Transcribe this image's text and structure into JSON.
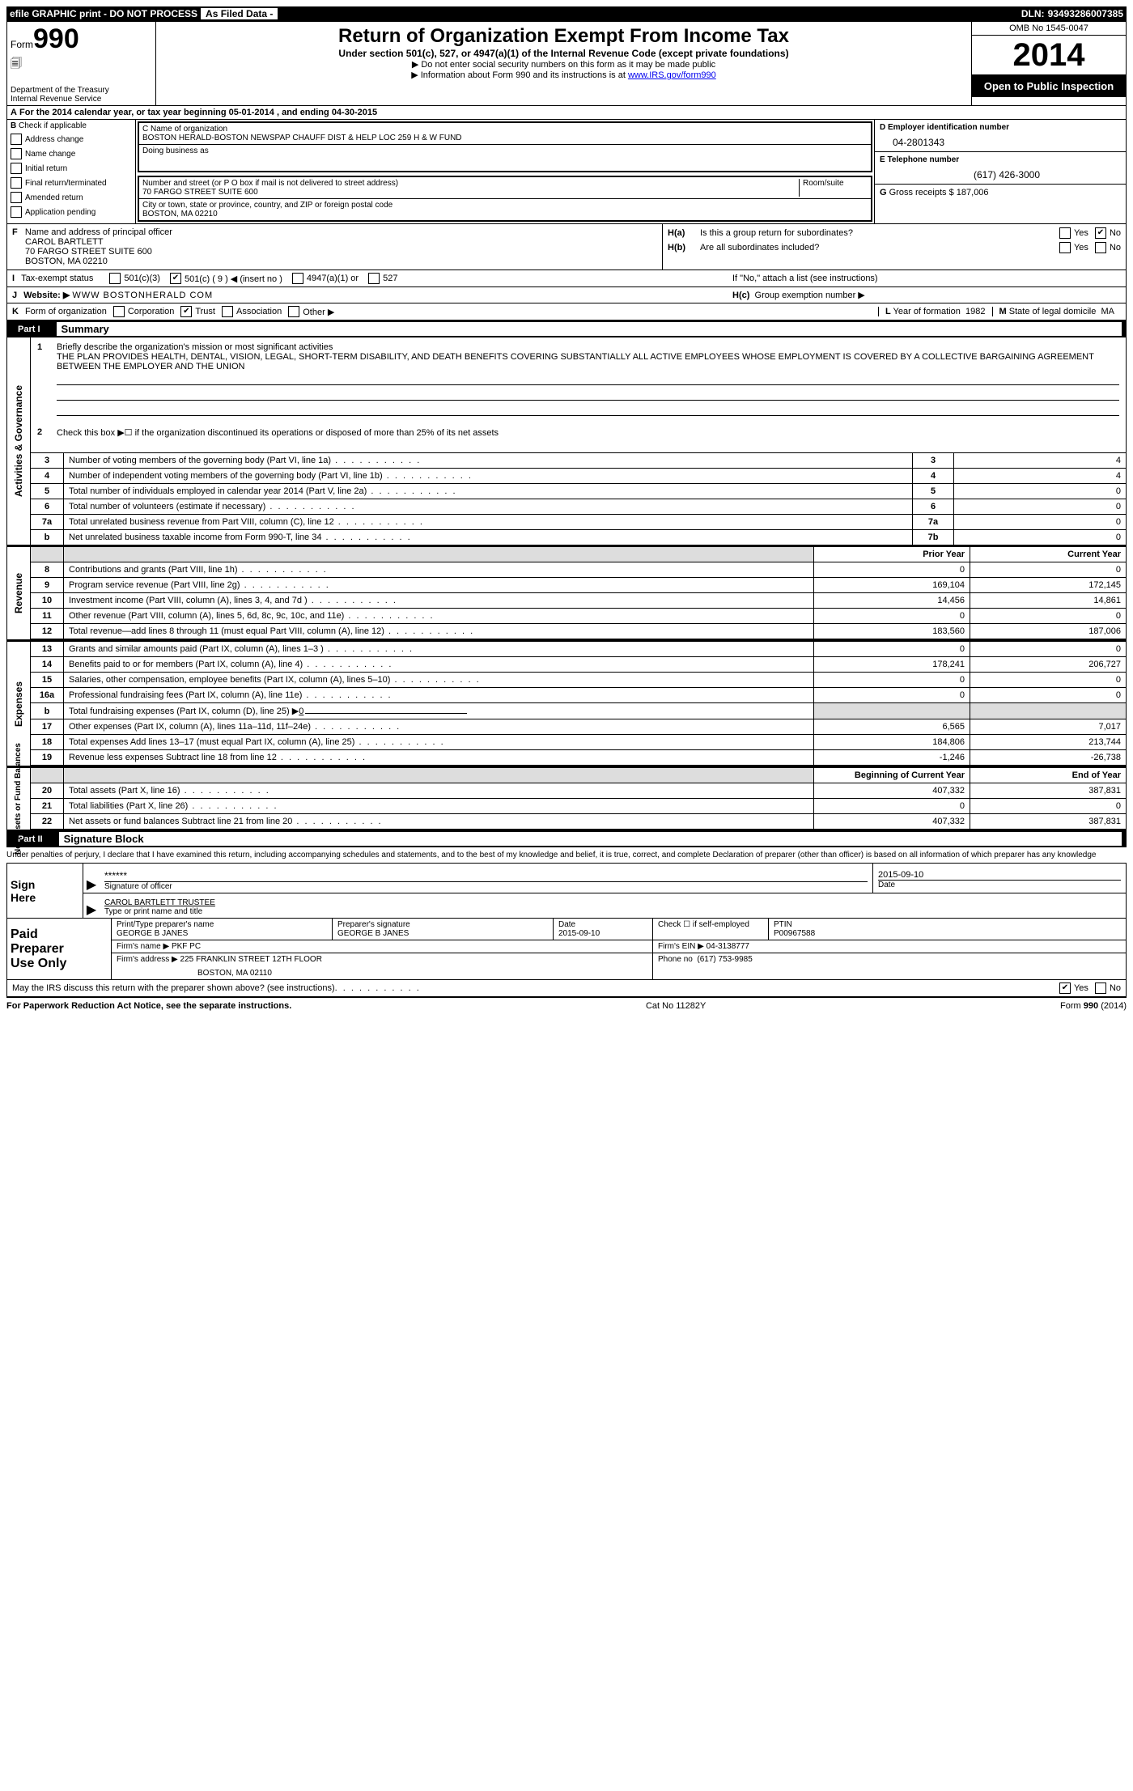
{
  "header_bar": {
    "efile": "efile GRAPHIC print - DO NOT PROCESS",
    "as_filed": "As Filed Data -",
    "dln_label": "DLN:",
    "dln": "93493286007385"
  },
  "form_id": {
    "prefix": "Form",
    "number": "990",
    "dept1": "Department of the Treasury",
    "dept2": "Internal Revenue Service"
  },
  "title_block": {
    "title": "Return of Organization Exempt From Income Tax",
    "sub": "Under section 501(c), 527, or 4947(a)(1) of the Internal Revenue Code (except private foundations)",
    "note1": "▶ Do not enter social security numbers on this form as it may be made public",
    "note2_pre": "▶ Information about Form 990 and its instructions is at ",
    "note2_link": "www.IRS.gov/form990"
  },
  "right_block": {
    "omb": "OMB No 1545-0047",
    "year": "2014",
    "open": "Open to Public Inspection"
  },
  "row_a": {
    "prefix": "A",
    "text1": "For the 2014 calendar year, or tax year beginning ",
    "begin": "05-01-2014",
    "text2": " , and ending ",
    "end": "04-30-2015"
  },
  "col_b": {
    "label": "B",
    "check_if": "Check if applicable",
    "items": [
      "Address change",
      "Name change",
      "Initial return",
      "Final return/terminated",
      "Amended return",
      "Application pending"
    ]
  },
  "col_c": {
    "name_label": "C Name of organization",
    "name": "BOSTON HERALD-BOSTON NEWSPAP CHAUFF DIST & HELP LOC 259 H & W FUND",
    "dba_label": "Doing business as",
    "dba": "",
    "addr_label": "Number and street (or P O  box if mail is not delivered to street address)",
    "room_label": "Room/suite",
    "addr": "70 FARGO STREET SUITE 600",
    "city_label": "City or town, state or province, country, and ZIP or foreign postal code",
    "city": "BOSTON, MA  02210"
  },
  "col_d": {
    "d_label": "D Employer identification number",
    "ein": "04-2801343",
    "e_label": "E Telephone number",
    "phone": "(617) 426-3000",
    "g_label": "G",
    "g_text": "Gross receipts $",
    "g_val": "187,006"
  },
  "officer": {
    "label": "F",
    "text": "Name and address of principal officer",
    "name": "CAROL BARTLETT",
    "addr1": "70 FARGO STREET SUITE 600",
    "addr2": "BOSTON, MA  02210"
  },
  "h_block": {
    "ha_label": "H(a)",
    "ha_text": "Is this a group return for subordinates?",
    "hb_label": "H(b)",
    "hb_text": "Are all subordinates included?",
    "h_note": "If \"No,\" attach a list  (see instructions)",
    "hc_label": "H(c)",
    "hc_text": "Group exemption number ▶",
    "yes": "Yes",
    "no": "No"
  },
  "row_i": {
    "label": "I",
    "text": "Tax-exempt status",
    "opt1": "501(c)(3)",
    "opt2": "501(c) ( 9 ) ◀ (insert no )",
    "opt3": "4947(a)(1) or",
    "opt4": "527"
  },
  "row_j": {
    "label": "J",
    "text": "Website: ▶",
    "url": "WWW BOSTONHERALD COM"
  },
  "row_k": {
    "label": "K",
    "text": "Form of organization",
    "opts": [
      "Corporation",
      "Trust",
      "Association",
      "Other ▶"
    ],
    "l_label": "L",
    "l_text": "Year of formation",
    "l_val": "1982",
    "m_label": "M",
    "m_text": "State of legal domicile",
    "m_val": "MA"
  },
  "part1": {
    "num": "Part I",
    "title": "Summary"
  },
  "summary": {
    "q1_label": "1",
    "q1": "Briefly describe the organization's mission or most significant activities",
    "q1_ans": "THE PLAN PROVIDES HEALTH, DENTAL, VISION, LEGAL, SHORT-TERM DISABILITY, AND DEATH BENEFITS COVERING SUBSTANTIALLY ALL ACTIVE EMPLOYEES WHOSE EMPLOYMENT IS COVERED BY A COLLECTIVE BARGAINING AGREEMENT BETWEEN THE EMPLOYER AND THE UNION",
    "q2_label": "2",
    "q2": "Check this box ▶☐ if the organization discontinued its operations or disposed of more than 25% of its net assets",
    "rows": [
      {
        "n": "3",
        "t": "Number of voting members of the governing body (Part VI, line 1a)",
        "b": "3",
        "v": "4"
      },
      {
        "n": "4",
        "t": "Number of independent voting members of the governing body (Part VI, line 1b)",
        "b": "4",
        "v": "4"
      },
      {
        "n": "5",
        "t": "Total number of individuals employed in calendar year 2014 (Part V, line 2a)",
        "b": "5",
        "v": "0"
      },
      {
        "n": "6",
        "t": "Total number of volunteers (estimate if necessary)",
        "b": "6",
        "v": "0"
      },
      {
        "n": "7a",
        "t": "Total unrelated business revenue from Part VIII, column (C), line 12",
        "b": "7a",
        "v": "0"
      },
      {
        "n": "b",
        "t": "Net unrelated business taxable income from Form 990-T, line 34",
        "b": "7b",
        "v": "0"
      }
    ]
  },
  "fin_headers": {
    "prior": "Prior Year",
    "curr": "Current Year",
    "begin": "Beginning of Current Year",
    "end": "End of Year"
  },
  "revenue": [
    {
      "n": "8",
      "t": "Contributions and grants (Part VIII, line 1h)",
      "p": "0",
      "c": "0"
    },
    {
      "n": "9",
      "t": "Program service revenue (Part VIII, line 2g)",
      "p": "169,104",
      "c": "172,145"
    },
    {
      "n": "10",
      "t": "Investment income (Part VIII, column (A), lines 3, 4, and 7d )",
      "p": "14,456",
      "c": "14,861"
    },
    {
      "n": "11",
      "t": "Other revenue (Part VIII, column (A), lines 5, 6d, 8c, 9c, 10c, and 11e)",
      "p": "0",
      "c": "0"
    },
    {
      "n": "12",
      "t": "Total revenue—add lines 8 through 11 (must equal Part VIII, column (A), line 12)",
      "p": "183,560",
      "c": "187,006"
    }
  ],
  "expenses": [
    {
      "n": "13",
      "t": "Grants and similar amounts paid (Part IX, column (A), lines 1–3 )",
      "p": "0",
      "c": "0"
    },
    {
      "n": "14",
      "t": "Benefits paid to or for members (Part IX, column (A), line 4)",
      "p": "178,241",
      "c": "206,727"
    },
    {
      "n": "15",
      "t": "Salaries, other compensation, employee benefits (Part IX, column (A), lines 5–10)",
      "p": "0",
      "c": "0"
    },
    {
      "n": "16a",
      "t": "Professional fundraising fees (Part IX, column (A), line 11e)",
      "p": "0",
      "c": "0"
    },
    {
      "n": "b",
      "t": "Total fundraising expenses (Part IX, column (D), line 25) ▶",
      "p": "",
      "c": "",
      "grey": true,
      "underline": "0"
    },
    {
      "n": "17",
      "t": "Other expenses (Part IX, column (A), lines 11a–11d, 11f–24e)",
      "p": "6,565",
      "c": "7,017"
    },
    {
      "n": "18",
      "t": "Total expenses  Add lines 13–17 (must equal Part IX, column (A), line 25)",
      "p": "184,806",
      "c": "213,744"
    },
    {
      "n": "19",
      "t": "Revenue less expenses  Subtract line 18 from line 12",
      "p": "-1,246",
      "c": "-26,738"
    }
  ],
  "netassets": [
    {
      "n": "20",
      "t": "Total assets (Part X, line 16)",
      "p": "407,332",
      "c": "387,831"
    },
    {
      "n": "21",
      "t": "Total liabilities (Part X, line 26)",
      "p": "0",
      "c": "0"
    },
    {
      "n": "22",
      "t": "Net assets or fund balances  Subtract line 21 from line 20",
      "p": "407,332",
      "c": "387,831"
    }
  ],
  "side_labels": {
    "ag": "Activities & Governance",
    "rev": "Revenue",
    "exp": "Expenses",
    "na": "Net Assets or Fund Balances"
  },
  "part2": {
    "num": "Part II",
    "title": "Signature Block",
    "declaration": "Under penalties of perjury, I declare that I have examined this return, including accompanying schedules and statements, and to the best of my knowledge and belief, it is true, correct, and complete  Declaration of preparer (other than officer) is based on all information of which preparer has any knowledge"
  },
  "sign": {
    "label": "Sign Here",
    "stars": "******",
    "sig_label": "Signature of officer",
    "date": "2015-09-10",
    "date_label": "Date",
    "name": "CAROL BARTLETT TRUSTEE",
    "name_label": "Type or print name and title"
  },
  "prep": {
    "label": "Paid Preparer Use Only",
    "r1": {
      "c1_label": "Print/Type preparer's name",
      "c1": "GEORGE B JANES",
      "c2_label": "Preparer's signature",
      "c2": "GEORGE B JANES",
      "c3_label": "Date",
      "c3": "2015-09-10",
      "c4_label": "Check ☐ if self-employed",
      "c5_label": "PTIN",
      "c5": "P00967588"
    },
    "r2": {
      "c1_label": "Firm's name    ▶",
      "c1": "PKF PC",
      "c2_label": "Firm's EIN ▶",
      "c2": "04-3138777"
    },
    "r3": {
      "c1_label": "Firm's address ▶",
      "c1": "225 FRANKLIN STREET 12TH FLOOR",
      "c1b": "BOSTON, MA  02110",
      "c2_label": "Phone no",
      "c2": "(617) 753-9985"
    }
  },
  "irs_discuss": {
    "text": "May the IRS discuss this return with the preparer shown above? (see instructions)",
    "yes": "Yes",
    "no": "No"
  },
  "footer": {
    "left": "For Paperwork Reduction Act Notice, see the separate instructions.",
    "mid": "Cat No 11282Y",
    "right": "Form 990 (2014)"
  }
}
